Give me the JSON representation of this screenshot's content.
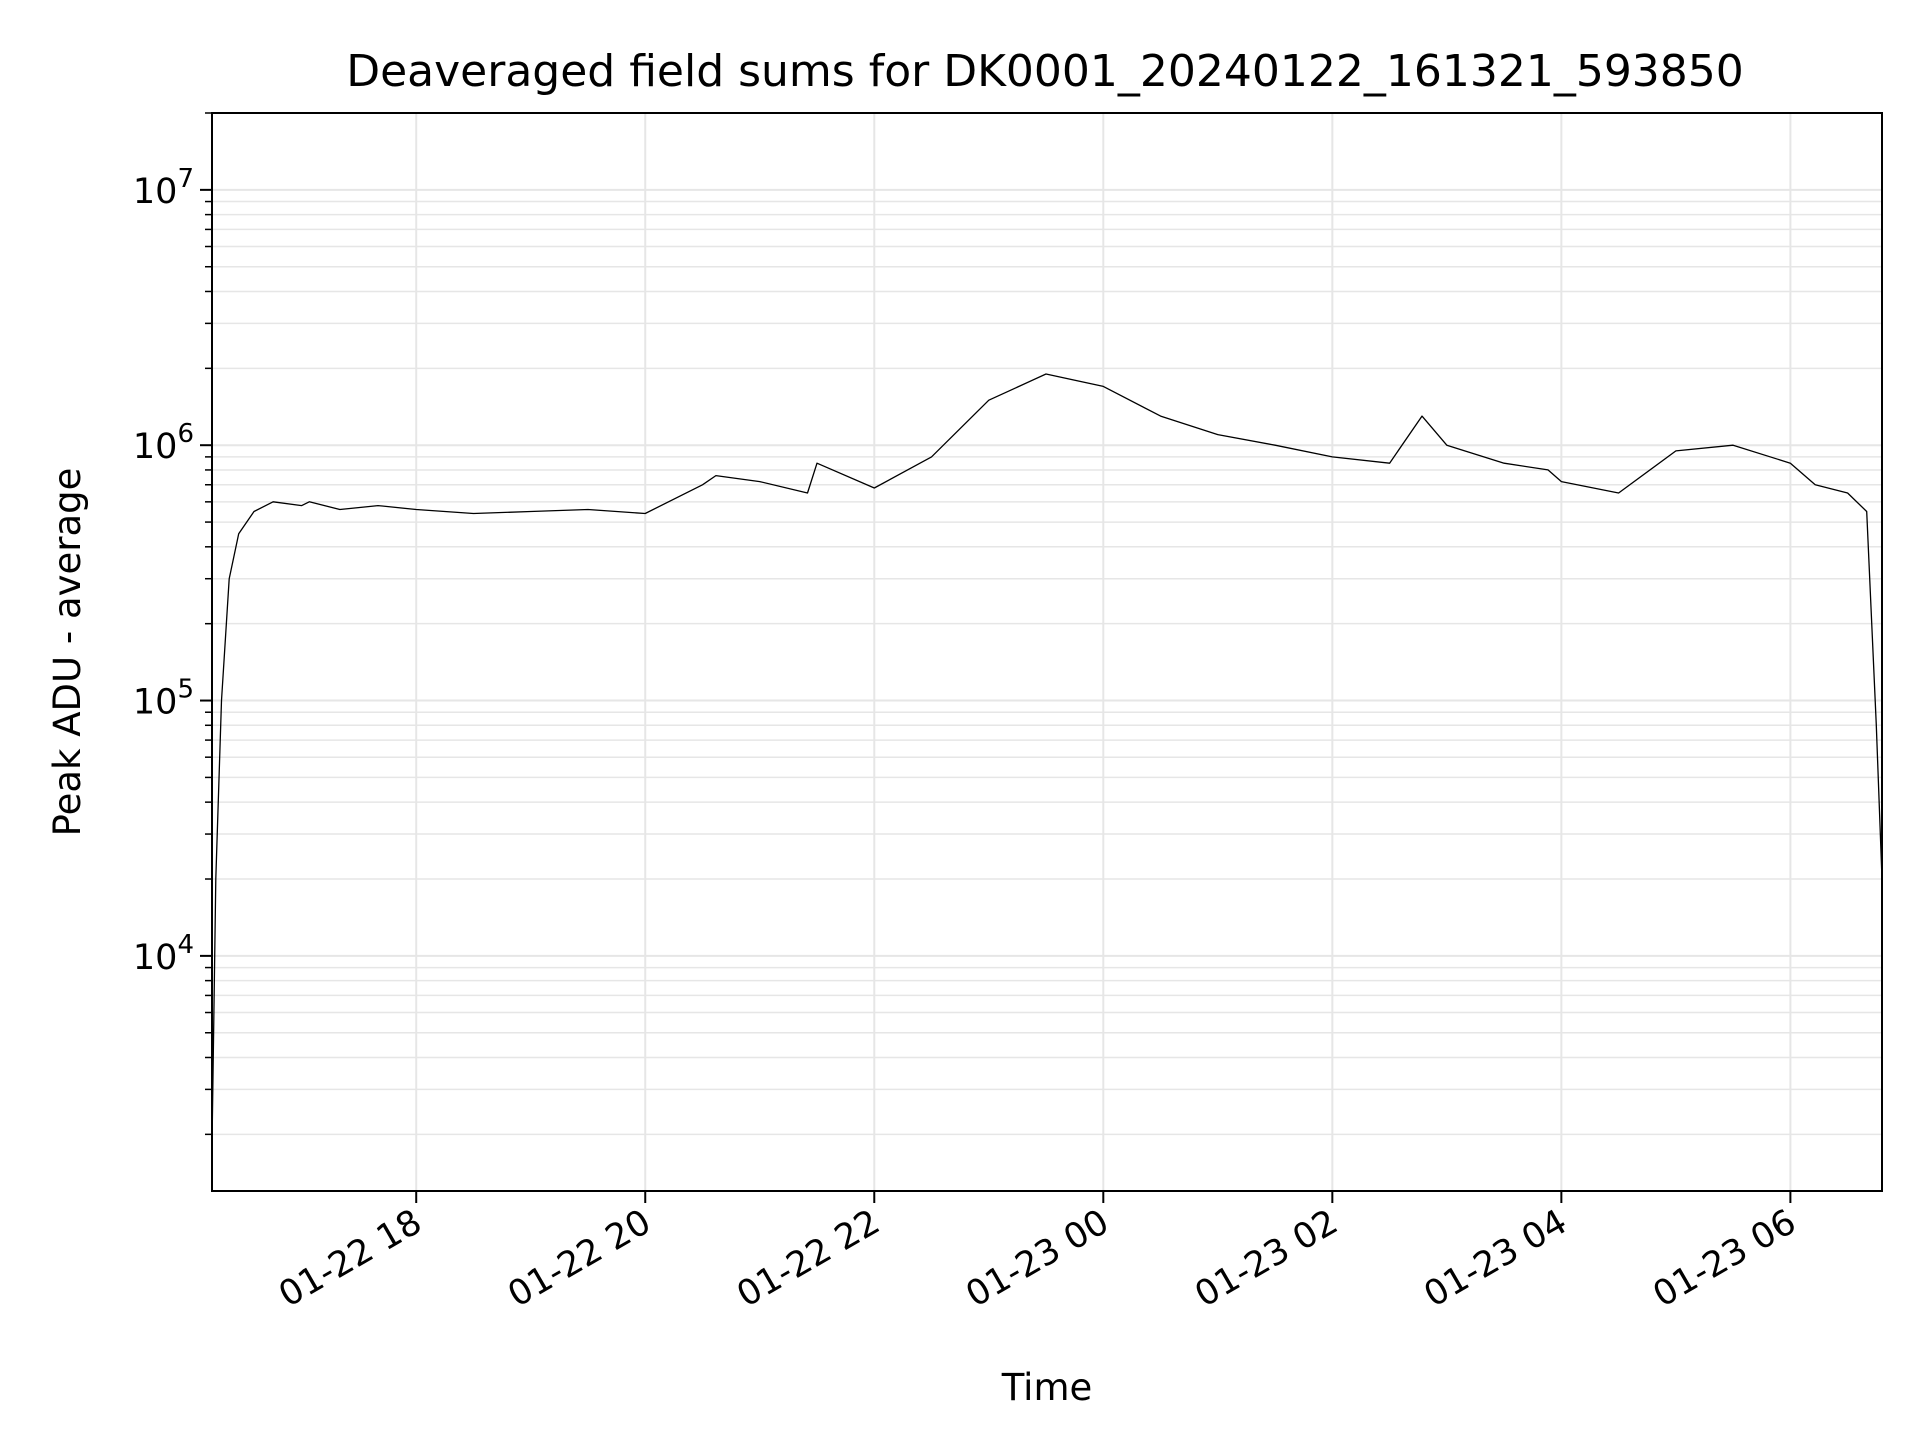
{
  "chart_data": {
    "type": "line",
    "title": "Deaveraged field sums for DK0001_20240122_161321_593850",
    "xlabel": "Time",
    "ylabel": "Peak ADU - average",
    "y_scale": "log",
    "ylim": [
      1200,
      20000000
    ],
    "xlim": [
      "2024-01-22 16:13",
      "2024-01-23 06:48"
    ],
    "grid": true,
    "line_color": "#000000",
    "grid_color": "#e6e6e6",
    "x_ticks": [
      {
        "value": "2024-01-22 18:00",
        "label": "01-22 18"
      },
      {
        "value": "2024-01-22 20:00",
        "label": "01-22 20"
      },
      {
        "value": "2024-01-22 22:00",
        "label": "01-22 22"
      },
      {
        "value": "2024-01-23 00:00",
        "label": "01-23 00"
      },
      {
        "value": "2024-01-23 02:00",
        "label": "01-23 02"
      },
      {
        "value": "2024-01-23 04:00",
        "label": "01-23 04"
      },
      {
        "value": "2024-01-23 06:00",
        "label": "01-23 06"
      }
    ],
    "y_ticks": [
      {
        "value": 10000,
        "base": "10",
        "exp": "4"
      },
      {
        "value": 100000,
        "base": "10",
        "exp": "5"
      },
      {
        "value": 1000000,
        "base": "10",
        "exp": "6"
      },
      {
        "value": 10000000,
        "base": "10",
        "exp": "7"
      }
    ],
    "series": [
      {
        "x": [
          "2024-01-22 16:13",
          "2024-01-22 16:15",
          "2024-01-22 16:18",
          "2024-01-22 16:22",
          "2024-01-22 16:27",
          "2024-01-22 16:35",
          "2024-01-22 16:45",
          "2024-01-22 17:00",
          "2024-01-22 17:04",
          "2024-01-22 17:20",
          "2024-01-22 17:40",
          "2024-01-22 18:00",
          "2024-01-22 18:30",
          "2024-01-22 19:00",
          "2024-01-22 19:30",
          "2024-01-22 20:00",
          "2024-01-22 20:30",
          "2024-01-22 20:37",
          "2024-01-22 21:00",
          "2024-01-22 21:25",
          "2024-01-22 21:30",
          "2024-01-22 22:00",
          "2024-01-22 22:30",
          "2024-01-22 23:00",
          "2024-01-22 23:30",
          "2024-01-23 00:00",
          "2024-01-23 00:30",
          "2024-01-23 01:00",
          "2024-01-23 01:30",
          "2024-01-23 02:00",
          "2024-01-23 02:30",
          "2024-01-23 02:47",
          "2024-01-23 03:00",
          "2024-01-23 03:30",
          "2024-01-23 03:53",
          "2024-01-23 04:00",
          "2024-01-23 04:30",
          "2024-01-23 05:00",
          "2024-01-23 05:30",
          "2024-01-23 06:00",
          "2024-01-23 06:13",
          "2024-01-23 06:30",
          "2024-01-23 06:40",
          "2024-01-23 06:45",
          "2024-01-23 06:48"
        ],
        "y": [
          1800,
          20000,
          100000,
          300000,
          450000,
          550000,
          600000,
          580000,
          600000,
          560000,
          580000,
          560000,
          540000,
          550000,
          560000,
          540000,
          700000,
          760000,
          720000,
          650000,
          850000,
          680000,
          900000,
          1500000,
          1900000,
          1700000,
          1300000,
          1100000,
          1000000,
          900000,
          850000,
          1300000,
          1000000,
          850000,
          800000,
          720000,
          650000,
          950000,
          1000000,
          850000,
          700000,
          650000,
          550000,
          80000,
          20000
        ]
      }
    ]
  }
}
